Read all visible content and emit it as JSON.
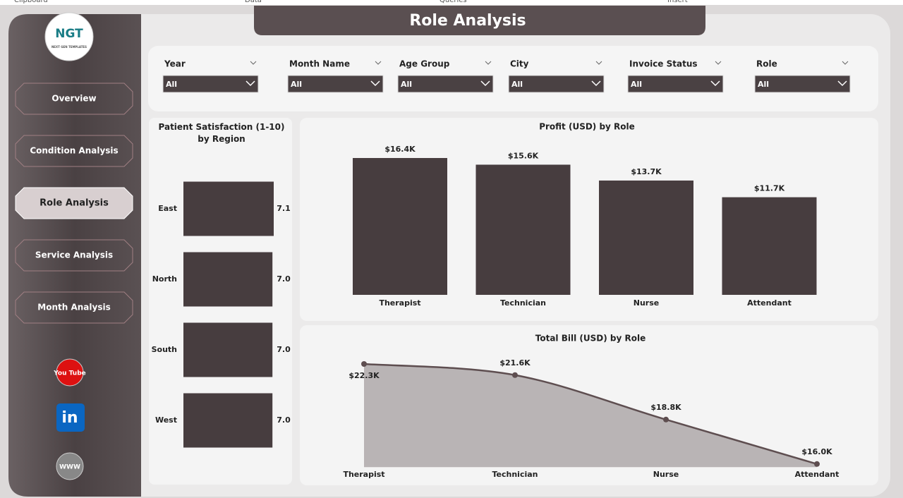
{
  "ribbon": [
    "Clipboard",
    "Data",
    "Queries",
    "Insert"
  ],
  "header": {
    "title": "Role Analysis"
  },
  "logo": {
    "mark": "NGT",
    "text": "NEXT GEN TEMPLATES"
  },
  "nav": [
    "Overview",
    "Condition Analysis",
    "Role Analysis",
    "Service Analysis",
    "Month Analysis"
  ],
  "social": [
    "You Tube",
    "in",
    "WWW"
  ],
  "filters": [
    {
      "label": "Year",
      "value": "All"
    },
    {
      "label": "Month Name",
      "value": "All"
    },
    {
      "label": "Age Group",
      "value": "All"
    },
    {
      "label": "City",
      "value": "All"
    },
    {
      "label": "Invoice Status",
      "value": "All"
    },
    {
      "label": "Role",
      "value": "All"
    }
  ],
  "chart_data": [
    {
      "type": "barh",
      "title": "Patient Satisfaction (1-10) by Region",
      "categories": [
        "East",
        "North",
        "South",
        "West"
      ],
      "values": [
        7.1,
        7.0,
        7.0,
        7.0
      ],
      "value_labels": [
        "7.1",
        "7.0",
        "7.0",
        "7.0"
      ],
      "color": "#473d3f"
    },
    {
      "type": "bar",
      "title": "Profit (USD) by Role",
      "categories": [
        "Therapist",
        "Technician",
        "Nurse",
        "Attendant"
      ],
      "values": [
        16400,
        15600,
        13700,
        11700
      ],
      "value_labels": [
        "$16.4K",
        "$15.6K",
        "$13.7K",
        "$11.7K"
      ],
      "color": "#473d3f"
    },
    {
      "type": "area",
      "title": "Total Bill (USD) by Role",
      "categories": [
        "Therapist",
        "Technician",
        "Nurse",
        "Attendant"
      ],
      "values": [
        22300,
        21600,
        18800,
        16000
      ],
      "value_labels": [
        "$22.3K",
        "$21.6K",
        "$18.8K",
        "$16.0K"
      ],
      "color": "#5e4e50",
      "fill": "#b9b4b5",
      "ylim": [
        15800,
        22500
      ]
    }
  ]
}
